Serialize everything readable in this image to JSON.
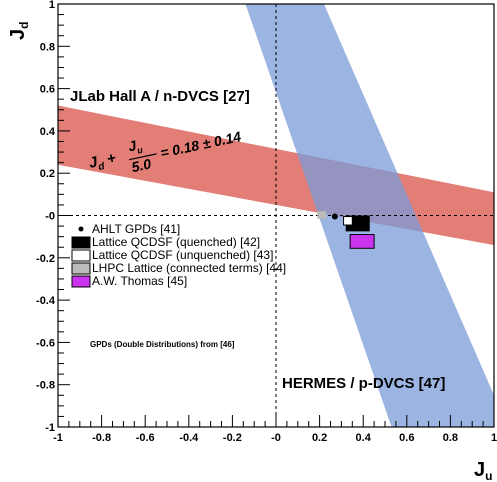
{
  "chart_data": {
    "type": "scatter",
    "xlabel": "J",
    "xlabel_sub": "u",
    "ylabel": "J",
    "ylabel_sub": "d",
    "xlim": [
      -1,
      1
    ],
    "ylim": [
      -1,
      1
    ],
    "x_ticks": [
      {
        "value": -1,
        "label": "-1"
      },
      {
        "value": -0.8,
        "label": "-0.8"
      },
      {
        "value": -0.6,
        "label": "-0.6"
      },
      {
        "value": -0.4,
        "label": "-0.4"
      },
      {
        "value": -0.2,
        "label": "-0.2"
      },
      {
        "value": 0,
        "label": "-0"
      },
      {
        "value": 0.2,
        "label": "0.2"
      },
      {
        "value": 0.4,
        "label": "0.4"
      },
      {
        "value": 0.6,
        "label": "0.6"
      },
      {
        "value": 0.8,
        "label": "0.8"
      },
      {
        "value": 1,
        "label": "1"
      }
    ],
    "y_ticks": [
      {
        "value": -1,
        "label": "-1"
      },
      {
        "value": -0.8,
        "label": "-0.8"
      },
      {
        "value": -0.6,
        "label": "-0.6"
      },
      {
        "value": -0.4,
        "label": "-0.4"
      },
      {
        "value": -0.2,
        "label": "-0.2"
      },
      {
        "value": 0,
        "label": "-0"
      },
      {
        "value": 0.2,
        "label": "0.2"
      },
      {
        "value": 0.4,
        "label": "0.4"
      },
      {
        "value": 0.6,
        "label": "0.6"
      },
      {
        "value": 0.8,
        "label": "0.8"
      },
      {
        "value": 1,
        "label": "1"
      }
    ],
    "grid": false,
    "reference_lines": {
      "x": 0,
      "y": 0,
      "style": "dashed"
    },
    "bands": [
      {
        "name": "jlab",
        "label": "JLab Hall A / n-DVCS [27]",
        "color": "#d9534a",
        "polygon": [
          [
            -1,
            0.52
          ],
          [
            1,
            0.11
          ],
          [
            1,
            -0.14
          ],
          [
            -1,
            0.24
          ]
        ]
      },
      {
        "name": "hermes",
        "label": "HERMES / p-DVCS [47]",
        "color": "#7b9bd8",
        "polygon": [
          [
            -0.14,
            1
          ],
          [
            0.22,
            1
          ],
          [
            1,
            -0.85
          ],
          [
            1,
            -1
          ],
          [
            0.53,
            -1
          ]
        ]
      }
    ],
    "formula": {
      "left": "J",
      "left_sub": "d",
      "plus": "+",
      "num": "J",
      "num_sub": "u",
      "den": "5.0",
      "rhs": "= 0.18 ± 0.14"
    },
    "points": [
      {
        "name": "AHLT GPDs [41]",
        "marker": "dot",
        "x": 0.27,
        "y": -0.005,
        "color": "#000000"
      },
      {
        "name": "Lattice QCDSF (quenched) [42]",
        "marker": "box",
        "x": [
          0.32,
          0.43
        ],
        "y": [
          -0.075,
          0.0
        ],
        "color": "#000000"
      },
      {
        "name": "Lattice QCDSF (unquenched) [43]",
        "marker": "box",
        "x": [
          0.31,
          0.35
        ],
        "y": [
          -0.045,
          -0.005
        ],
        "color": "#ffffff",
        "stroke": "#000000"
      },
      {
        "name": "LHPC Lattice (connected terms) [44]",
        "marker": "box",
        "x": [
          0.19,
          0.23
        ],
        "y": [
          -0.015,
          0.02
        ],
        "color": "#bbbbbb"
      },
      {
        "name": "A.W. Thomas [45]",
        "marker": "box",
        "x": [
          0.34,
          0.45
        ],
        "y": [
          -0.155,
          -0.09
        ],
        "color": "#cc33ee",
        "stroke": "#000000"
      }
    ],
    "legend": [
      {
        "label": "AHLT GPDs [41]",
        "marker": "dot",
        "color": "#000000"
      },
      {
        "label": "Lattice QCDSF (quenched) [42]",
        "marker": "box",
        "color": "#000000"
      },
      {
        "label": "Lattice QCDSF (unquenched) [43]",
        "marker": "box",
        "color": "#ffffff"
      },
      {
        "label": "LHPC Lattice (connected terms) [44]",
        "marker": "box",
        "color": "#bbbbbb"
      },
      {
        "label": "A.W. Thomas [45]",
        "marker": "box",
        "color": "#cc33ee"
      }
    ],
    "legend_position": "center-left",
    "annotation": "GPDs (Double Distributions) from [46]"
  }
}
